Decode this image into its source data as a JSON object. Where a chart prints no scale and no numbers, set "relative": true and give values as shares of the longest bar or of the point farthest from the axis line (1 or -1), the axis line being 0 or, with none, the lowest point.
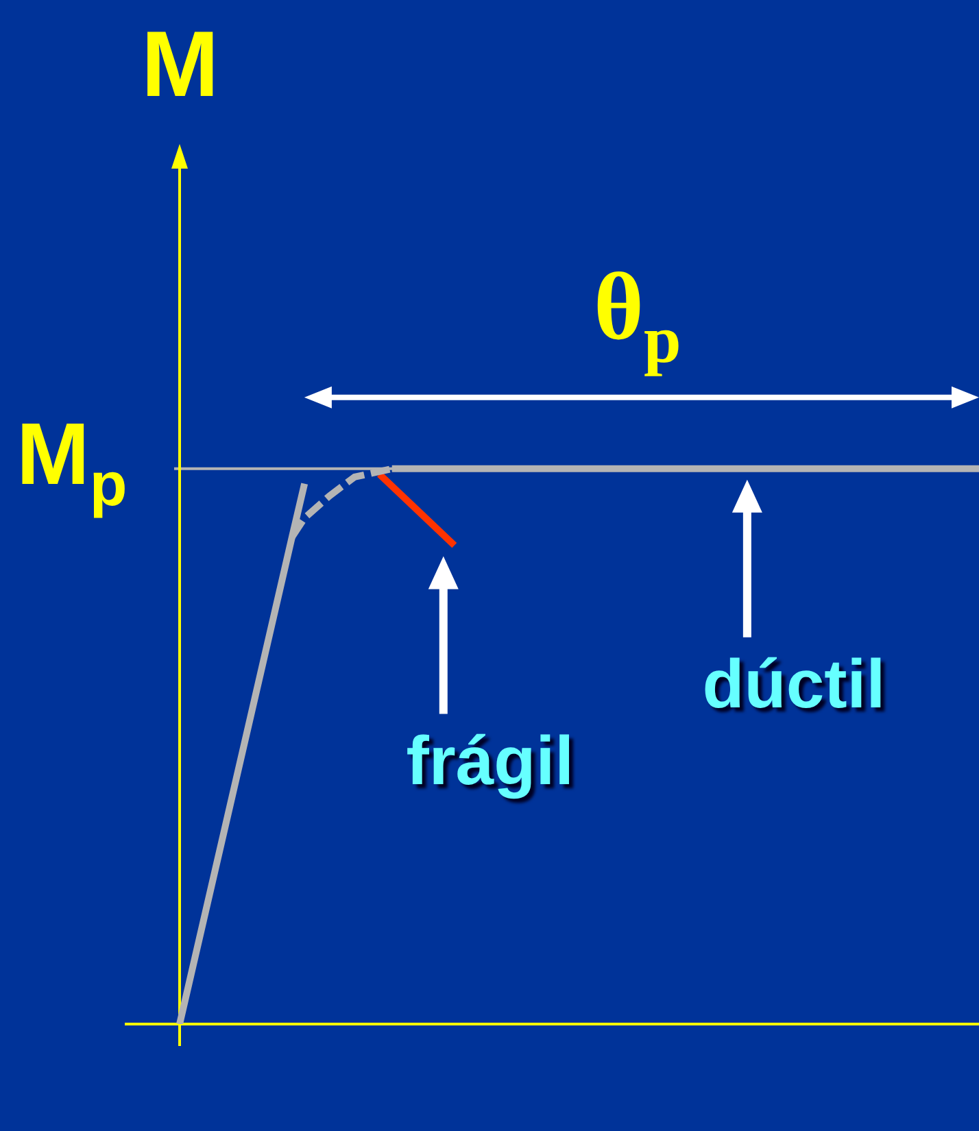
{
  "chart_data": {
    "type": "line",
    "relative": true,
    "ylabel": "M",
    "marker": "none",
    "categories": [
      null,
      null,
      null,
      null,
      null,
      null,
      null,
      null,
      null,
      null,
      null,
      null,
      null,
      null,
      null,
      null,
      null,
      null,
      null,
      null,
      null,
      null,
      null,
      null,
      null,
      null,
      null,
      null,
      null,
      null,
      null,
      null,
      null,
      null,
      null,
      null,
      null,
      null,
      null,
      null,
      null,
      null,
      null,
      null,
      null,
      null,
      null,
      null,
      null,
      null,
      null,
      null,
      null,
      null,
      null,
      null,
      null,
      null,
      null,
      null,
      null,
      null,
      null,
      null,
      null
    ],
    "series": [
      {
        "color": "#b4b4b4",
        "values": [
          0,
          null,
          null,
          null,
          null,
          null,
          null,
          null,
          null,
          0.877,
          0.973,
          null,
          null,
          null,
          null,
          null,
          null,
          null,
          null,
          null,
          null,
          null,
          null,
          null,
          null,
          null,
          null,
          null,
          null,
          null,
          null,
          null,
          null,
          null,
          null,
          null,
          null,
          null,
          null,
          null,
          null,
          null,
          null,
          null,
          null,
          null,
          null,
          null,
          null,
          null,
          null,
          null,
          null,
          null,
          null,
          null,
          null,
          null,
          null,
          null,
          null,
          null,
          null,
          null,
          null
        ]
      },
      {
        "color": "#b4b4b4",
        "line_style": "dashed",
        "values": [
          null,
          null,
          null,
          null,
          null,
          null,
          null,
          null,
          null,
          0.877,
          0.911,
          null,
          0.951,
          null,
          0.985,
          null,
          null,
          1.0,
          null,
          null,
          null,
          null,
          null,
          null,
          null,
          null,
          null,
          null,
          null,
          null,
          null,
          null,
          null,
          null,
          null,
          null,
          null,
          null,
          null,
          null,
          null,
          null,
          null,
          null,
          null,
          null,
          null,
          null,
          null,
          null,
          null,
          null,
          null,
          null,
          null,
          null,
          null,
          null,
          null,
          null,
          null,
          null,
          null,
          null,
          null
        ]
      },
      {
        "color": "#b4b4b4",
        "values": [
          null,
          null,
          null,
          null,
          null,
          null,
          null,
          null,
          null,
          null,
          null,
          null,
          null,
          null,
          null,
          null,
          null,
          1.0,
          null,
          null,
          null,
          null,
          null,
          null,
          null,
          null,
          null,
          null,
          null,
          null,
          null,
          null,
          null,
          null,
          null,
          null,
          null,
          null,
          null,
          null,
          null,
          null,
          null,
          null,
          null,
          null,
          null,
          null,
          null,
          null,
          null,
          null,
          null,
          null,
          null,
          null,
          null,
          null,
          null,
          null,
          null,
          null,
          null,
          null,
          1.0
        ]
      },
      {
        "color": "#ff3300",
        "values": [
          null,
          null,
          null,
          null,
          null,
          null,
          null,
          null,
          null,
          null,
          null,
          null,
          null,
          null,
          null,
          null,
          0.99,
          null,
          null,
          null,
          null,
          null,
          0.862,
          null,
          null,
          null,
          null,
          null,
          null,
          null,
          null,
          null,
          null,
          null,
          null,
          null,
          null,
          null,
          null,
          null,
          null,
          null,
          null,
          null,
          null,
          null,
          null,
          null,
          null,
          null,
          null,
          null,
          null,
          null,
          null,
          null,
          null,
          null,
          null,
          null,
          null,
          null,
          null,
          null,
          null
        ]
      }
    ],
    "ref_lines": [
      {
        "axis": "y",
        "value": 1,
        "label": "M$_{p}$",
        "color": "#b4b4b4"
      }
    ],
    "annotations": [
      "frágil",
      "dúctil",
      "θ$_{p}$"
    ]
  }
}
